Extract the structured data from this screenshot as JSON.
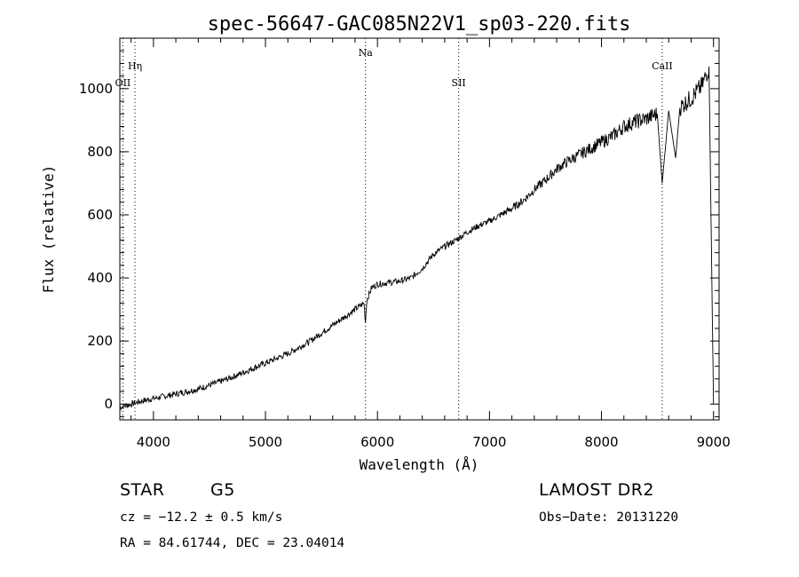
{
  "chart_data": {
    "type": "line",
    "title": "spec-56647-GAC085N22V1_sp03-220.fits",
    "xlabel": "Wavelength (Å)",
    "ylabel": "Flux (relative)",
    "xlim": [
      3700,
      9050
    ],
    "ylim": [
      -50,
      1160
    ],
    "x_ticks": [
      4000,
      5000,
      6000,
      7000,
      8000,
      9000
    ],
    "y_ticks": [
      0,
      200,
      400,
      600,
      800,
      1000
    ],
    "grid": false,
    "series": [
      {
        "x": [
          3700,
          3800,
          3900,
          4000,
          4100,
          4200,
          4300,
          4400,
          4500,
          4600,
          4700,
          4800,
          4900,
          5000,
          5100,
          5200,
          5300,
          5400,
          5500,
          5600,
          5700,
          5800,
          5880,
          5893,
          5905,
          5950,
          6000,
          6100,
          6200,
          6300,
          6400,
          6500,
          6563,
          6600,
          6700,
          6800,
          6900,
          7000,
          7100,
          7200,
          7300,
          7400,
          7500,
          7600,
          7700,
          7800,
          7900,
          8000,
          8100,
          8200,
          8300,
          8400,
          8498,
          8542,
          8600,
          8662,
          8700,
          8800,
          8900,
          8960,
          9000
        ],
        "y": [
          -10,
          0,
          10,
          18,
          25,
          32,
          40,
          48,
          60,
          72,
          85,
          100,
          115,
          130,
          145,
          160,
          180,
          200,
          225,
          250,
          275,
          300,
          320,
          260,
          330,
          370,
          380,
          385,
          390,
          400,
          430,
          475,
          490,
          500,
          520,
          545,
          565,
          580,
          600,
          620,
          645,
          680,
          710,
          745,
          770,
          790,
          810,
          830,
          850,
          880,
          895,
          905,
          920,
          700,
          930,
          780,
          940,
          970,
          1010,
          1070,
          0
        ],
        "noise": 10
      }
    ],
    "line_markers": [
      {
        "label": "Hη",
        "x": 3835
      },
      {
        "label": "OII",
        "x": 3727
      },
      {
        "label": "Na",
        "x": 5893
      },
      {
        "label": "SII",
        "x": 6725
      },
      {
        "label": "CaII",
        "x": 8542
      }
    ]
  },
  "info": {
    "object_class": "STAR",
    "subclass": "G5",
    "survey": "LAMOST DR2",
    "redshift": "cz = −12.2 ± 0.5 km/s",
    "obs_date": "Obs−Date: 20131220",
    "coords": "RA =  84.61744, DEC =  23.04014"
  }
}
